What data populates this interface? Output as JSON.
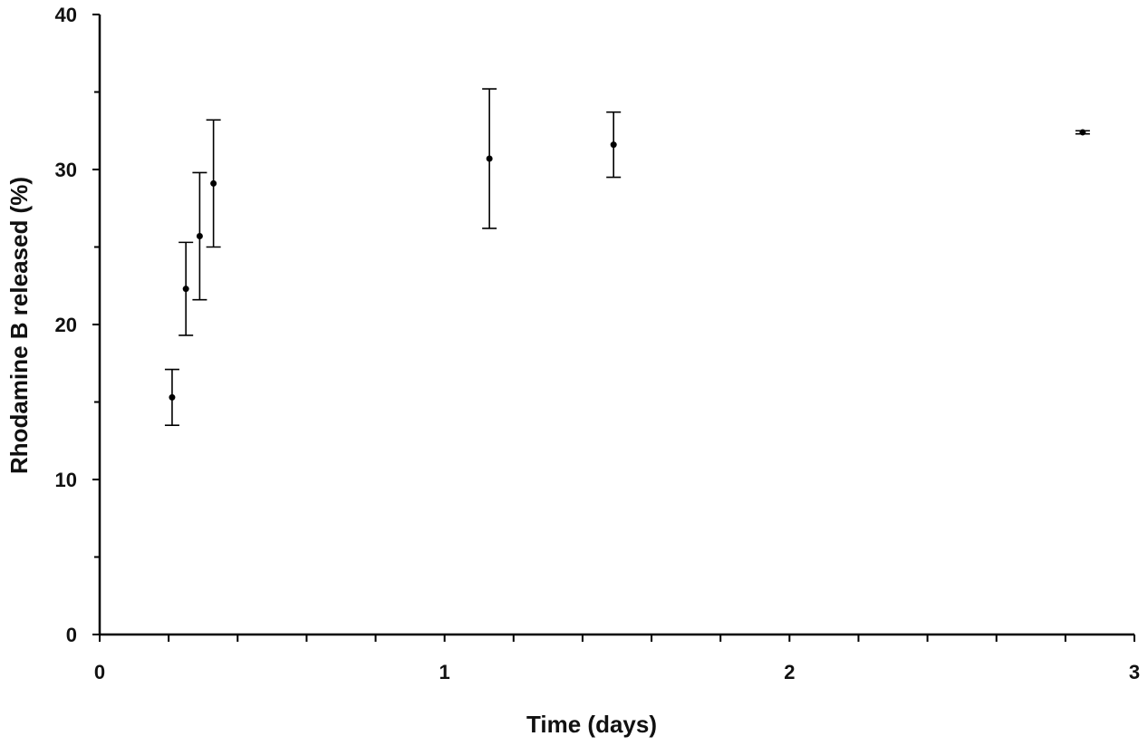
{
  "chart_data": {
    "type": "scatter",
    "title": "",
    "xlabel": "Time (days)",
    "ylabel": "Rhodamine B released (%)",
    "xlim": [
      0,
      3
    ],
    "ylim": [
      0,
      40
    ],
    "x_ticks": [
      "0",
      "1",
      "2",
      "3"
    ],
    "y_ticks": [
      "0",
      "10",
      "20",
      "30",
      "40"
    ],
    "grid": false,
    "series": [
      {
        "x": [
          0.21,
          0.25,
          0.29,
          0.33,
          1.13,
          1.49,
          2.85
        ],
        "y": [
          15.3,
          22.3,
          25.7,
          29.1,
          30.7,
          31.6,
          32.4
        ],
        "error": [
          1.8,
          3.0,
          4.1,
          4.1,
          4.5,
          2.1,
          0.1
        ]
      }
    ],
    "colors": {
      "marker": "#000000",
      "axis": "#000000"
    }
  }
}
